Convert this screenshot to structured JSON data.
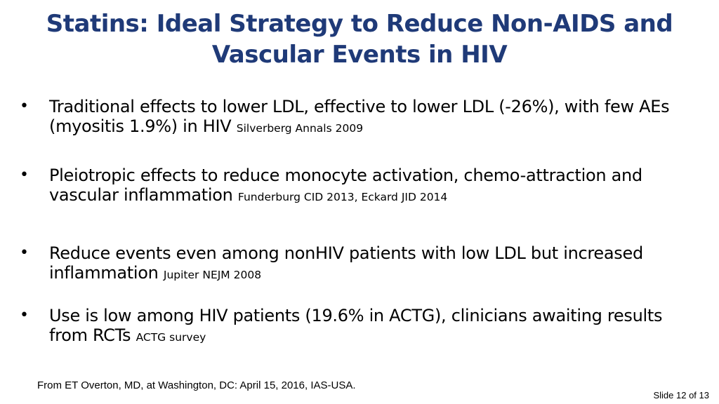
{
  "slide": {
    "title_line1": "Statins: Ideal Strategy to Reduce Non-AIDS and",
    "title_line2": "Vascular Events in HIV",
    "bullets": [
      {
        "marker": "•",
        "text": "Traditional effects to lower LDL, effective to lower LDL (-26%), with few AEs (myositis 1.9%) in HIV",
        "citation": "Silverberg Annals 2009"
      },
      {
        "marker": "•",
        "text": "Pleiotropic effects to reduce monocyte activation, chemo-attraction and vascular inflammation",
        "citation": "Funderburg CID 2013, Eckard JID 2014"
      },
      {
        "marker": "•",
        "text": "Reduce events even among nonHIV patients with low LDL but increased inflammation",
        "citation": "Jupiter NEJM 2008"
      },
      {
        "marker": "•",
        "text": "Use is low among HIV patients (19.6% in ACTG), clinicians awaiting results from RCTs",
        "citation": "ACTG survey"
      }
    ],
    "source": "From ET Overton, MD, at Washington, DC: April 15, 2016, IAS-USA.",
    "slide_number": "Slide 12 of 13"
  },
  "colors": {
    "title": "#1f3a78",
    "body_text": "#000000",
    "background": "#ffffff"
  }
}
